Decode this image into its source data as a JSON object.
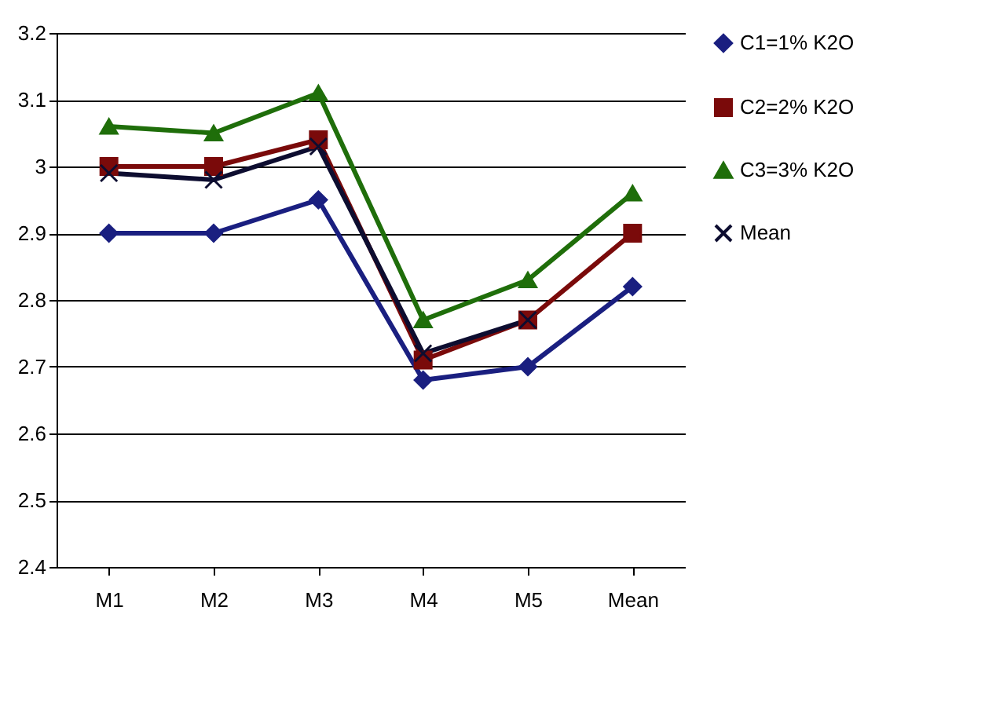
{
  "chart_data": {
    "type": "line",
    "categories": [
      "M1",
      "M2",
      "M3",
      "M4",
      "M5",
      "Mean"
    ],
    "series": [
      {
        "name": "C1=1% K2O",
        "color": "#1a1f80",
        "marker": "diamond",
        "values": [
          2.9,
          2.9,
          2.95,
          2.68,
          2.7,
          2.82
        ]
      },
      {
        "name": "C2=2% K2O",
        "color": "#7a0a0a",
        "marker": "square",
        "values": [
          3.0,
          3.0,
          3.04,
          2.71,
          2.77,
          2.9
        ]
      },
      {
        "name": "C3=3% K2O",
        "color": "#1f6e0a",
        "marker": "triangle",
        "values": [
          3.06,
          3.05,
          3.11,
          2.77,
          2.83,
          2.96
        ]
      },
      {
        "name": "Mean",
        "color": "#0d0d30",
        "marker": "cross",
        "values": [
          2.99,
          2.98,
          3.03,
          2.72,
          2.77,
          null
        ]
      }
    ],
    "ylim": [
      2.4,
      3.2
    ],
    "yticks": [
      2.4,
      2.5,
      2.6,
      2.7,
      2.8,
      2.9,
      {
        "value": 3,
        "label": "3"
      },
      3.1,
      3.2
    ],
    "grid": "y",
    "legend": "right",
    "line_style": "solid"
  }
}
